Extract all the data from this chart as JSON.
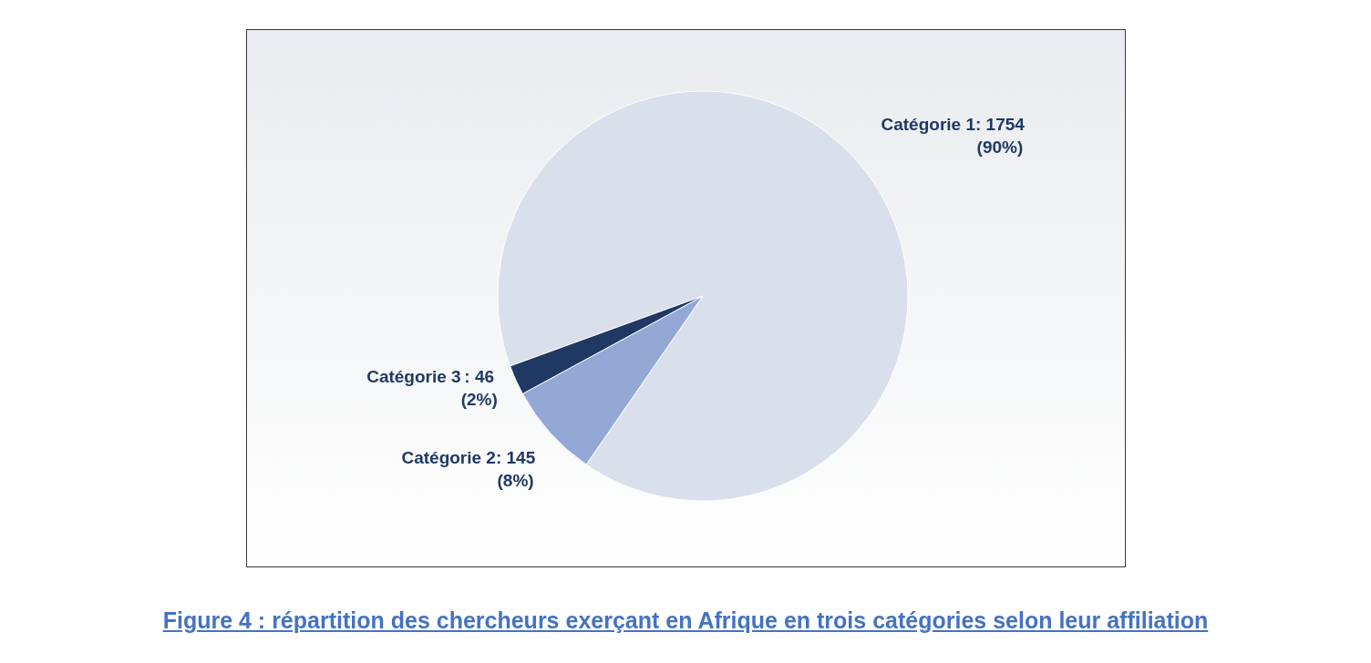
{
  "chart_data": {
    "type": "pie",
    "title": "Figure 4 : répartition des chercheurs exerçant en Afrique en trois catégories selon leur affiliation",
    "categories": [
      "Catégorie 1",
      "Catégorie 2",
      "Catégorie 3"
    ],
    "values": [
      1754,
      145,
      46
    ],
    "colors": [
      "#d9dfeb",
      "#94a8d6",
      "#1f3864"
    ],
    "value_labels": [
      ": 1754\n(90%)",
      ": 145\n(8%)",
      ": 46\n(2%)"
    ]
  }
}
